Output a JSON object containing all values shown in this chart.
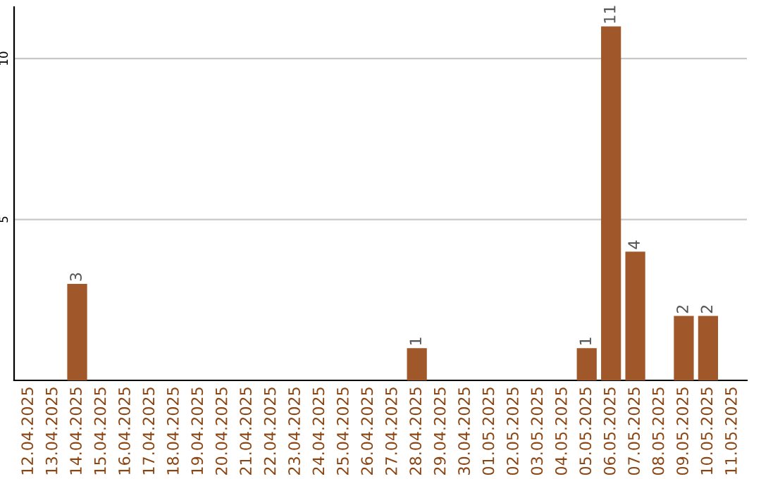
{
  "chart_data": {
    "type": "bar",
    "categories": [
      "12.04.2025",
      "13.04.2025",
      "14.04.2025",
      "15.04.2025",
      "16.04.2025",
      "17.04.2025",
      "18.04.2025",
      "19.04.2025",
      "20.04.2025",
      "21.04.2025",
      "22.04.2025",
      "23.04.2025",
      "24.04.2025",
      "25.04.2025",
      "26.04.2025",
      "27.04.2025",
      "28.04.2025",
      "29.04.2025",
      "30.04.2025",
      "01.05.2025",
      "02.05.2025",
      "03.05.2025",
      "04.05.2025",
      "05.05.2025",
      "06.05.2025",
      "07.05.2025",
      "08.05.2025",
      "09.05.2025",
      "10.05.2025",
      "11.05.2025"
    ],
    "values": [
      0,
      0,
      3,
      0,
      0,
      0,
      0,
      0,
      0,
      0,
      0,
      0,
      0,
      0,
      0,
      0,
      1,
      0,
      0,
      0,
      0,
      0,
      0,
      1,
      11,
      4,
      0,
      2,
      2,
      0
    ],
    "value_labels": [
      null,
      null,
      "3",
      null,
      null,
      null,
      null,
      null,
      null,
      null,
      null,
      null,
      null,
      null,
      null,
      null,
      "1",
      null,
      null,
      null,
      null,
      null,
      null,
      "1",
      "11",
      "4",
      null,
      "2",
      "2",
      null
    ],
    "color": "#a0582a",
    "ylim": [
      0,
      11.6
    ],
    "yticks": [
      5,
      10
    ],
    "grid": "y"
  }
}
